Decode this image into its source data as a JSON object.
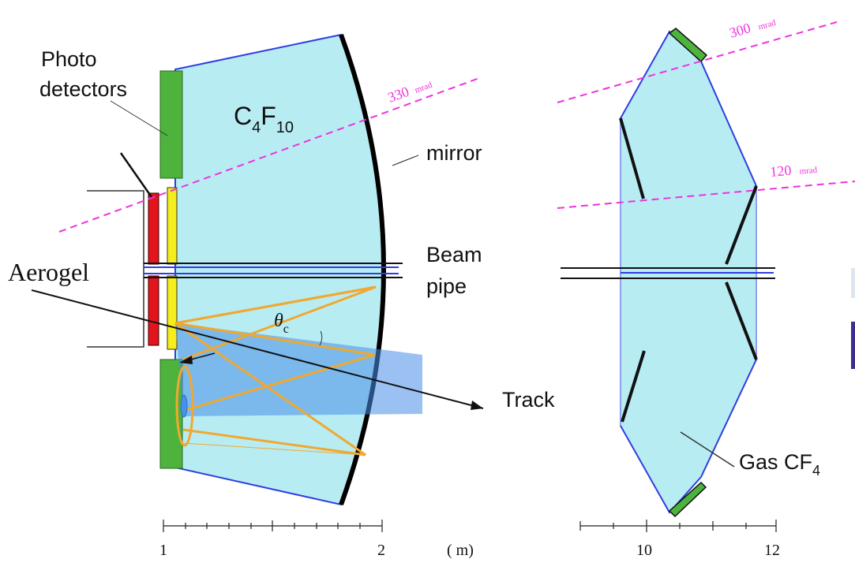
{
  "labels": {
    "photo_detectors_line1": "Photo",
    "photo_detectors_line2": "detectors",
    "radiator_gas_left_main": "C",
    "radiator_gas_left_sub1": "4",
    "radiator_gas_left_main2": "F",
    "radiator_gas_left_sub2": "10",
    "mirror": "mirror",
    "beam_line1": "Beam",
    "beam_line2": "pipe",
    "aerogel": "Aerogel",
    "theta": "θ",
    "theta_sub": "c",
    "track": "Track",
    "gas_right_main": "Gas CF",
    "gas_right_sub": "4",
    "angle_330_value": "330",
    "angle_330_unit": "mrad",
    "angle_300_value": "300",
    "angle_300_unit": "mrad",
    "angle_120_value": "120",
    "angle_120_unit": "mrad"
  },
  "scale_left": {
    "tick_start": "1",
    "tick_end": "2",
    "unit": "( m)"
  },
  "scale_right": {
    "tick_start": "10",
    "tick_end": "12"
  },
  "colors": {
    "gas_fill": "#b8ecf3",
    "outline_blue": "#2f3ee0",
    "detector_green": "#4db33d",
    "aerogel_red": "#e4141c",
    "aerogel_yellow": "#f5ee1a",
    "photon_orange": "#f0a830",
    "cone_blue": "#4a90e8",
    "angle_magenta": "#ee33dd"
  }
}
